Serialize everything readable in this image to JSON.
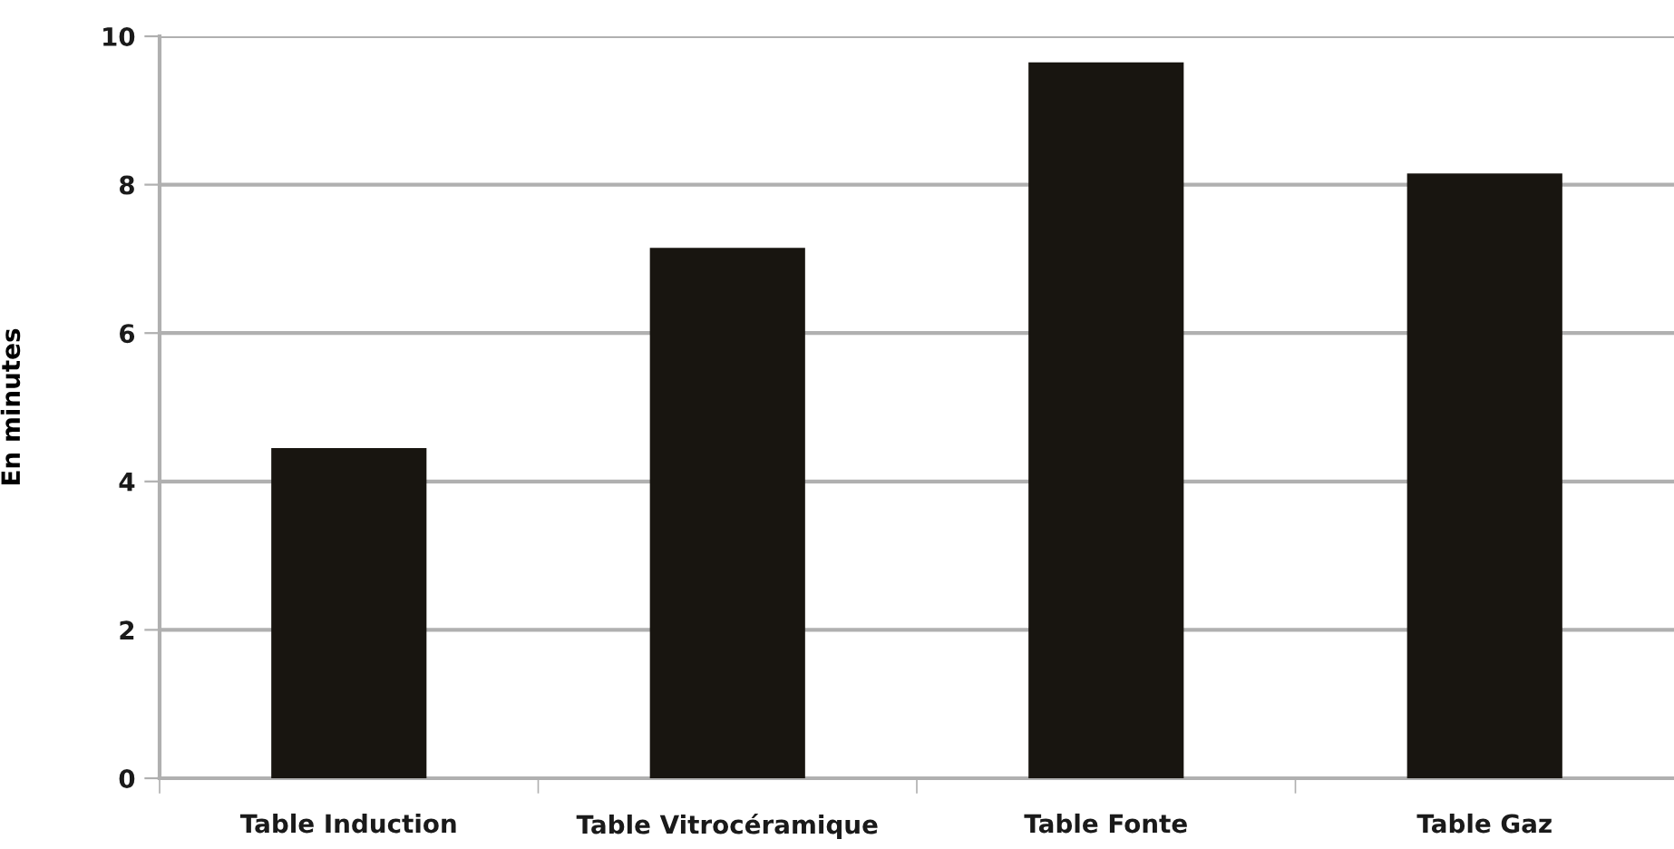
{
  "chart_data": {
    "type": "bar",
    "ylabel": "En minutes",
    "categories": [
      "Table Induction",
      "Table Vitrocéramique",
      "Table Fonte",
      "Table Gaz"
    ],
    "values": [
      4.45,
      7.15,
      9.65,
      8.15
    ],
    "color": "#181510",
    "ylim": [
      0,
      10
    ],
    "yticks": [
      0,
      2,
      4,
      6,
      8,
      10
    ],
    "grid": "y"
  }
}
